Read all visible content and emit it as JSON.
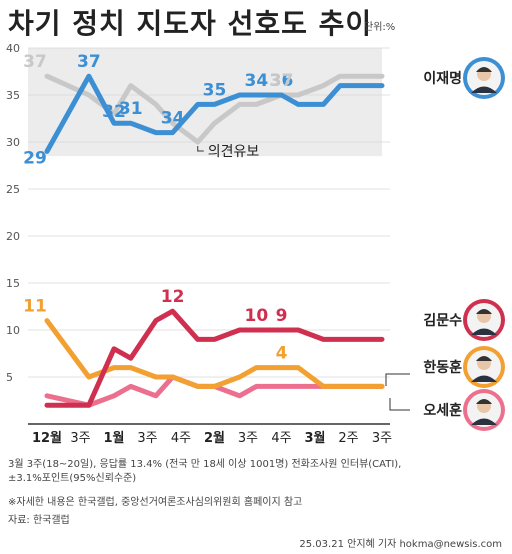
{
  "title": "차기 정치 지도자 선호도 추이",
  "unit": "단위:%",
  "chart_data": {
    "type": "line",
    "categories": [
      "12월",
      "3주",
      "1월",
      "3주",
      "4주",
      "2월",
      "3주",
      "4주",
      "3월",
      "2주",
      "3주"
    ],
    "x": [
      0,
      1,
      1.6,
      2,
      2.6,
      3,
      3.6,
      4,
      4.6,
      5,
      5.6,
      6,
      6.6,
      7,
      7.6,
      8
    ],
    "ylim": [
      0,
      40
    ],
    "yticks": [
      5,
      10,
      15,
      20,
      25,
      30,
      35,
      40
    ],
    "series": [
      {
        "name": "이재명",
        "color": "#3d8fd4",
        "values": [
          29,
          37,
          32,
          32,
          31,
          31,
          34,
          34,
          35,
          35,
          35,
          34,
          34,
          36,
          36,
          36
        ],
        "labels": [
          [
            0,
            "29"
          ],
          [
            1,
            "37"
          ],
          [
            2,
            "32"
          ],
          [
            3,
            "31"
          ],
          [
            5,
            "34"
          ],
          [
            7,
            "35"
          ],
          [
            9,
            "34"
          ],
          [
            10,
            "36"
          ]
        ]
      },
      {
        "name": "의견유보",
        "color": "#c8c8c8",
        "values": [
          37,
          35,
          33,
          36,
          34,
          32,
          30,
          32,
          34,
          34,
          35,
          35,
          36,
          37,
          37,
          37
        ],
        "labels": [
          [
            0,
            "37"
          ],
          [
            10,
            "37"
          ]
        ]
      },
      {
        "name": "김문수",
        "color": "#d03050",
        "values": [
          2,
          2,
          8,
          7,
          11,
          12,
          9,
          9,
          10,
          10,
          10,
          10,
          9,
          9,
          9,
          9
        ],
        "labels": [
          [
            5,
            "12"
          ],
          [
            9,
            "10"
          ],
          [
            10,
            "9"
          ]
        ]
      },
      {
        "name": "한동훈",
        "color": "#f2a032",
        "values": [
          11,
          5,
          6,
          6,
          5,
          5,
          4,
          4,
          5,
          6,
          6,
          6,
          4,
          4,
          4,
          4
        ],
        "labels": [
          [
            0,
            "11"
          ],
          [
            10,
            "4"
          ]
        ]
      },
      {
        "name": "오세훈",
        "color": "#ec6f8e",
        "values": [
          3,
          2,
          3,
          4,
          3,
          5,
          4,
          4,
          3,
          4,
          4,
          4,
          4,
          4,
          4,
          4
        ],
        "labels": []
      }
    ],
    "annotation": "의견유보"
  },
  "footnote1": "3월 3주(18~20일), 응답률 13.4% (전국 만 18세 이상 1001명) 전화조사원 인터뷰(CATI),",
  "footnote2": "±3.1%포인트(95%신뢰수준)",
  "footnote3": "※자세한 내용은 한국갤럽, 중앙선거여론조사심의위원회 홈페이지 참고",
  "source": "자료: 한국갤럽",
  "credit": "25.03.21  안지혜 기자  hokma@newsis.com"
}
